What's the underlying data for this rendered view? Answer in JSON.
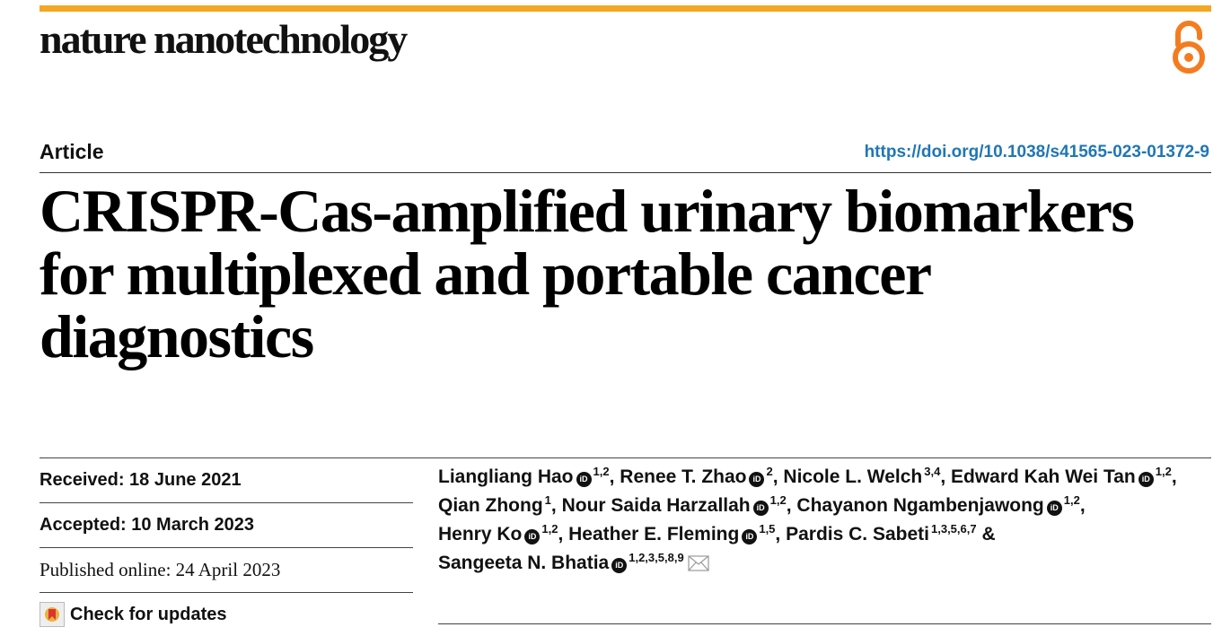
{
  "header": {
    "journal": "nature nanotechnology",
    "accent_color": "#f5a623",
    "open_access_icon": "open-access-icon"
  },
  "meta": {
    "article_type": "Article",
    "doi": "https://doi.org/10.1038/s41565-023-01372-9"
  },
  "title": "CRISPR-Cas-amplified urinary biomarkers for multiplexed and portable cancer diagnostics",
  "history": {
    "received": "Received: 18 June 2021",
    "accepted": "Accepted: 10 March 2023",
    "published": "Published online: 24 April 2023",
    "check_updates": "Check for updates"
  },
  "authors": [
    {
      "name": "Liangliang Hao",
      "affil": "1,2",
      "orcid": true,
      "sep": ","
    },
    {
      "name": "Renee T. Zhao",
      "affil": "2",
      "orcid": true,
      "sep": ","
    },
    {
      "name": "Nicole L. Welch",
      "affil": "3,4",
      "orcid": false,
      "sep": ","
    },
    {
      "name": "Edward Kah Wei Tan",
      "affil": "1,2",
      "orcid": true,
      "sep": ","
    },
    {
      "name": "Qian Zhong",
      "affil": "1",
      "orcid": false,
      "sep": ","
    },
    {
      "name": "Nour Saida Harzallah",
      "affil": "1,2",
      "orcid": true,
      "sep": ","
    },
    {
      "name": "Chayanon Ngambenjawong",
      "affil": "1,2",
      "orcid": true,
      "sep": ","
    },
    {
      "name": "Henry Ko",
      "affil": "1,2",
      "orcid": true,
      "sep": ","
    },
    {
      "name": "Heather E. Fleming",
      "affil": "1,5",
      "orcid": true,
      "sep": ","
    },
    {
      "name": "Pardis C. Sabeti",
      "affil": "1,3,5,6,7",
      "orcid": false,
      "sep": " &"
    },
    {
      "name": "Sangeeta N. Bhatia",
      "affil": "1,2,3,5,8,9",
      "orcid": true,
      "sep": "",
      "corresponding": true
    }
  ]
}
